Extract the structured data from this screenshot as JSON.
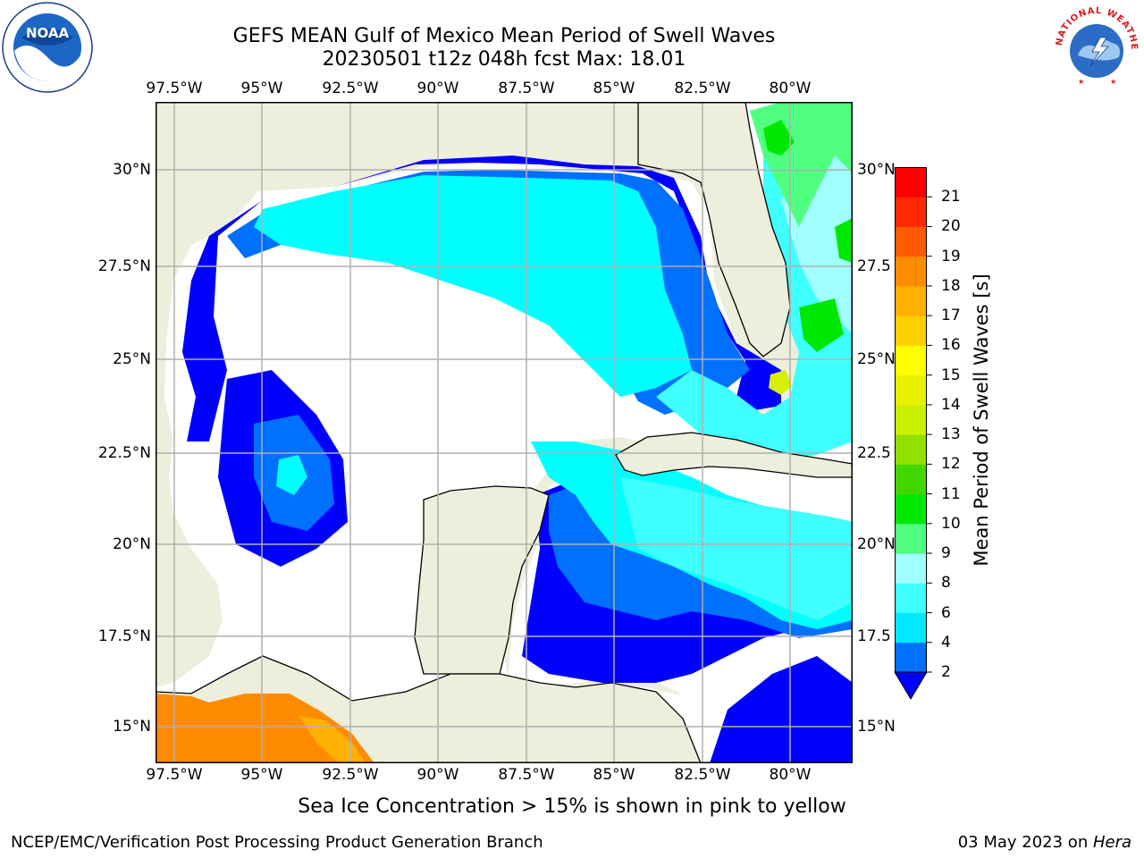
{
  "title_line1": "GEFS MEAN Gulf of Mexico Mean Period of Swell Waves",
  "title_line2": "20230501 t12z 048h fcst   Max: 18.01",
  "logos": {
    "left": {
      "name": "noaa-logo",
      "text": "NOAA"
    },
    "right": {
      "name": "nws-logo",
      "text": "NATIONAL WEATHER SERVICE"
    }
  },
  "map": {
    "lon_labels": [
      "97.5°W",
      "95°W",
      "92.5°W",
      "90°W",
      "87.5°W",
      "85°W",
      "82.5°W",
      "80°W"
    ],
    "lat_labels_left": [
      "30°N",
      "27.5°N",
      "25°N",
      "22.5°N",
      "20°N",
      "17.5°N",
      "15°N"
    ],
    "lat_labels_right": [
      "30°N",
      "27.5",
      "25°N",
      "22.5",
      "20°N",
      "17.5",
      "15°N"
    ],
    "extent": {
      "lon_min": -98,
      "lon_max": -78.2,
      "lat_min": 14,
      "lat_max": 31.8
    },
    "land_color": "#eeeedd",
    "grid_color": "#b0b0b0"
  },
  "colorbar": {
    "title": "Mean Period of Swell Waves [s]",
    "tick_labels": [
      "2",
      "4",
      "6",
      "8",
      "9",
      "10",
      "11",
      "12",
      "13",
      "14",
      "15",
      "16",
      "17",
      "18",
      "19",
      "20",
      "21"
    ],
    "levels": [
      2,
      4,
      6,
      8,
      9,
      10,
      11,
      12,
      13,
      14,
      15,
      16,
      17,
      18,
      19,
      20,
      21
    ],
    "colors": [
      "#0070ff",
      "#00e8ff",
      "#40ffff",
      "#a0ffff",
      "#50ff80",
      "#00e800",
      "#40d800",
      "#90e000",
      "#c8f000",
      "#e8f000",
      "#ffff00",
      "#ffd000",
      "#ffb000",
      "#ff8c00",
      "#ff5a00",
      "#ff2800",
      "#ff0000"
    ],
    "under_color": "#0000ff"
  },
  "note": "Sea Ice Concentration > 15% is shown in pink to yellow",
  "footer_left": "NCEP/EMC/Verification Post Processing Product Generation Branch",
  "footer_date": "03 May 2023 on ",
  "footer_host": "Hera"
}
